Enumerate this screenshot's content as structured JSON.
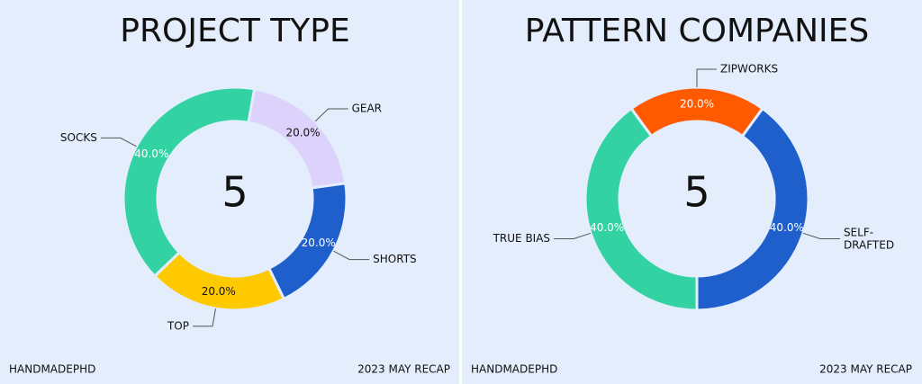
{
  "chart_data": [
    {
      "type": "pie",
      "title": "PROJECT TYPE",
      "donut": true,
      "startangle": 10,
      "total": 5,
      "categories": [
        "GEAR",
        "SHORTS",
        "TOP",
        "SOCKS"
      ],
      "values": [
        20,
        20,
        20,
        40
      ],
      "value_labels": [
        "20.0%",
        "20.0%",
        "20.0%",
        "40.0%"
      ],
      "colors": [
        "#dcd2fb",
        "#1f5fcc",
        "#ffc900",
        "#33d2a2"
      ],
      "footer_left": "HANDMADEPHD",
      "footer_right": "2023 MAY RECAP"
    },
    {
      "type": "pie",
      "title": "PATTERN COMPANIES",
      "donut": true,
      "startangle": -36,
      "total": 5,
      "categories": [
        "ZIPWORKS",
        "SELF-DRAFTED",
        "TRUE BIAS"
      ],
      "values": [
        20,
        40,
        40
      ],
      "value_labels": [
        "20.0%",
        "40.0%",
        "40.0%"
      ],
      "colors": [
        "#ff5a00",
        "#1f5fcc",
        "#33d2a2"
      ],
      "footer_left": "HANDMADEPHD",
      "footer_right": "2023 MAY RECAP"
    }
  ]
}
